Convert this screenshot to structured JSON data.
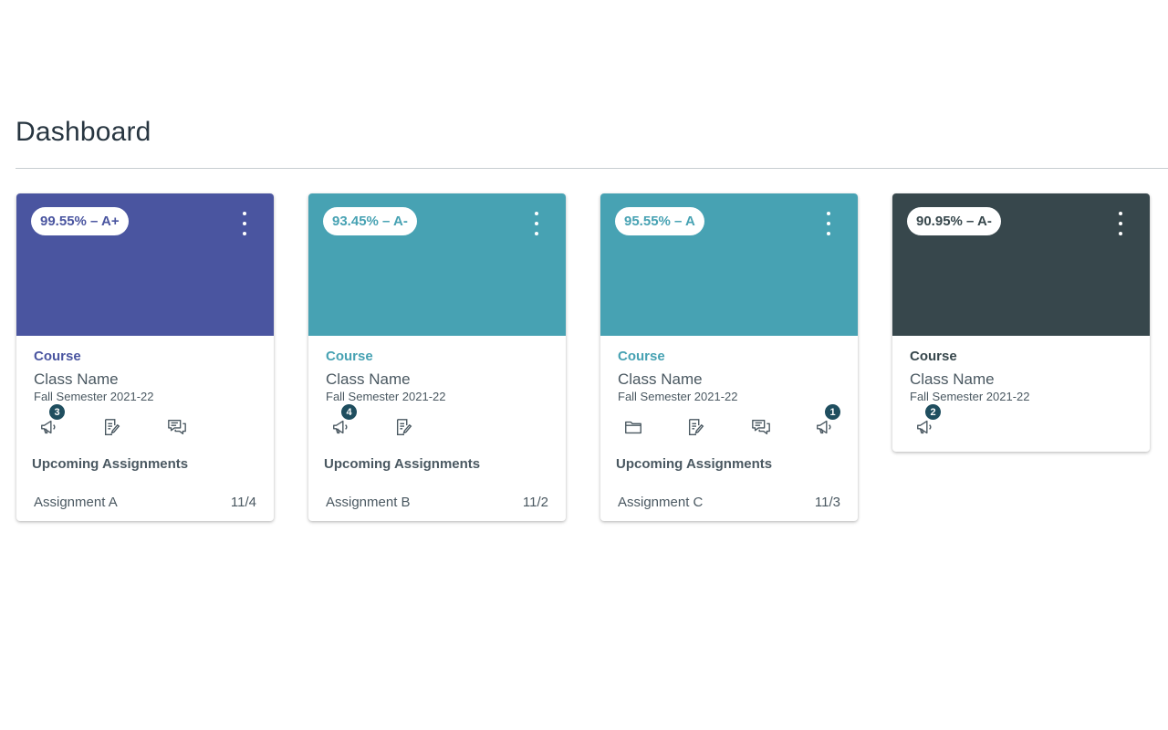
{
  "page": {
    "title": "Dashboard"
  },
  "cards": [
    {
      "grade": "99.55% – A+",
      "color": "#4a55a0",
      "course": "Course",
      "class_name": "Class Name",
      "term": "Fall Semester 2021-22",
      "icons": [
        {
          "name": "announcement-icon",
          "badge": "3"
        },
        {
          "name": "assignments-icon"
        },
        {
          "name": "discussions-icon"
        }
      ],
      "upcoming_heading": "Upcoming Assignments",
      "assignment": {
        "name": "Assignment A",
        "due": "11/4"
      }
    },
    {
      "grade": "93.45% – A-",
      "color": "#47a2b3",
      "course": "Course",
      "class_name": "Class Name",
      "term": "Fall Semester 2021-22",
      "icons": [
        {
          "name": "announcement-icon",
          "badge": "4"
        },
        {
          "name": "assignments-icon"
        }
      ],
      "upcoming_heading": "Upcoming Assignments",
      "assignment": {
        "name": "Assignment B",
        "due": "11/2"
      }
    },
    {
      "grade": "95.55% – A",
      "color": "#47a2b3",
      "course": "Course",
      "class_name": "Class Name",
      "term": "Fall Semester 2021-22",
      "icons": [
        {
          "name": "files-icon"
        },
        {
          "name": "assignments-icon"
        },
        {
          "name": "discussions-icon"
        },
        {
          "name": "announcement-icon",
          "badge": "1"
        }
      ],
      "upcoming_heading": "Upcoming Assignments",
      "assignment": {
        "name": "Assignment C",
        "due": "11/3"
      }
    },
    {
      "grade": "90.95% – A-",
      "color": "#37474c",
      "course": "Course",
      "class_name": "Class Name",
      "term": "Fall Semester 2021-22",
      "icons": [
        {
          "name": "announcement-icon",
          "badge": "2"
        }
      ]
    }
  ]
}
